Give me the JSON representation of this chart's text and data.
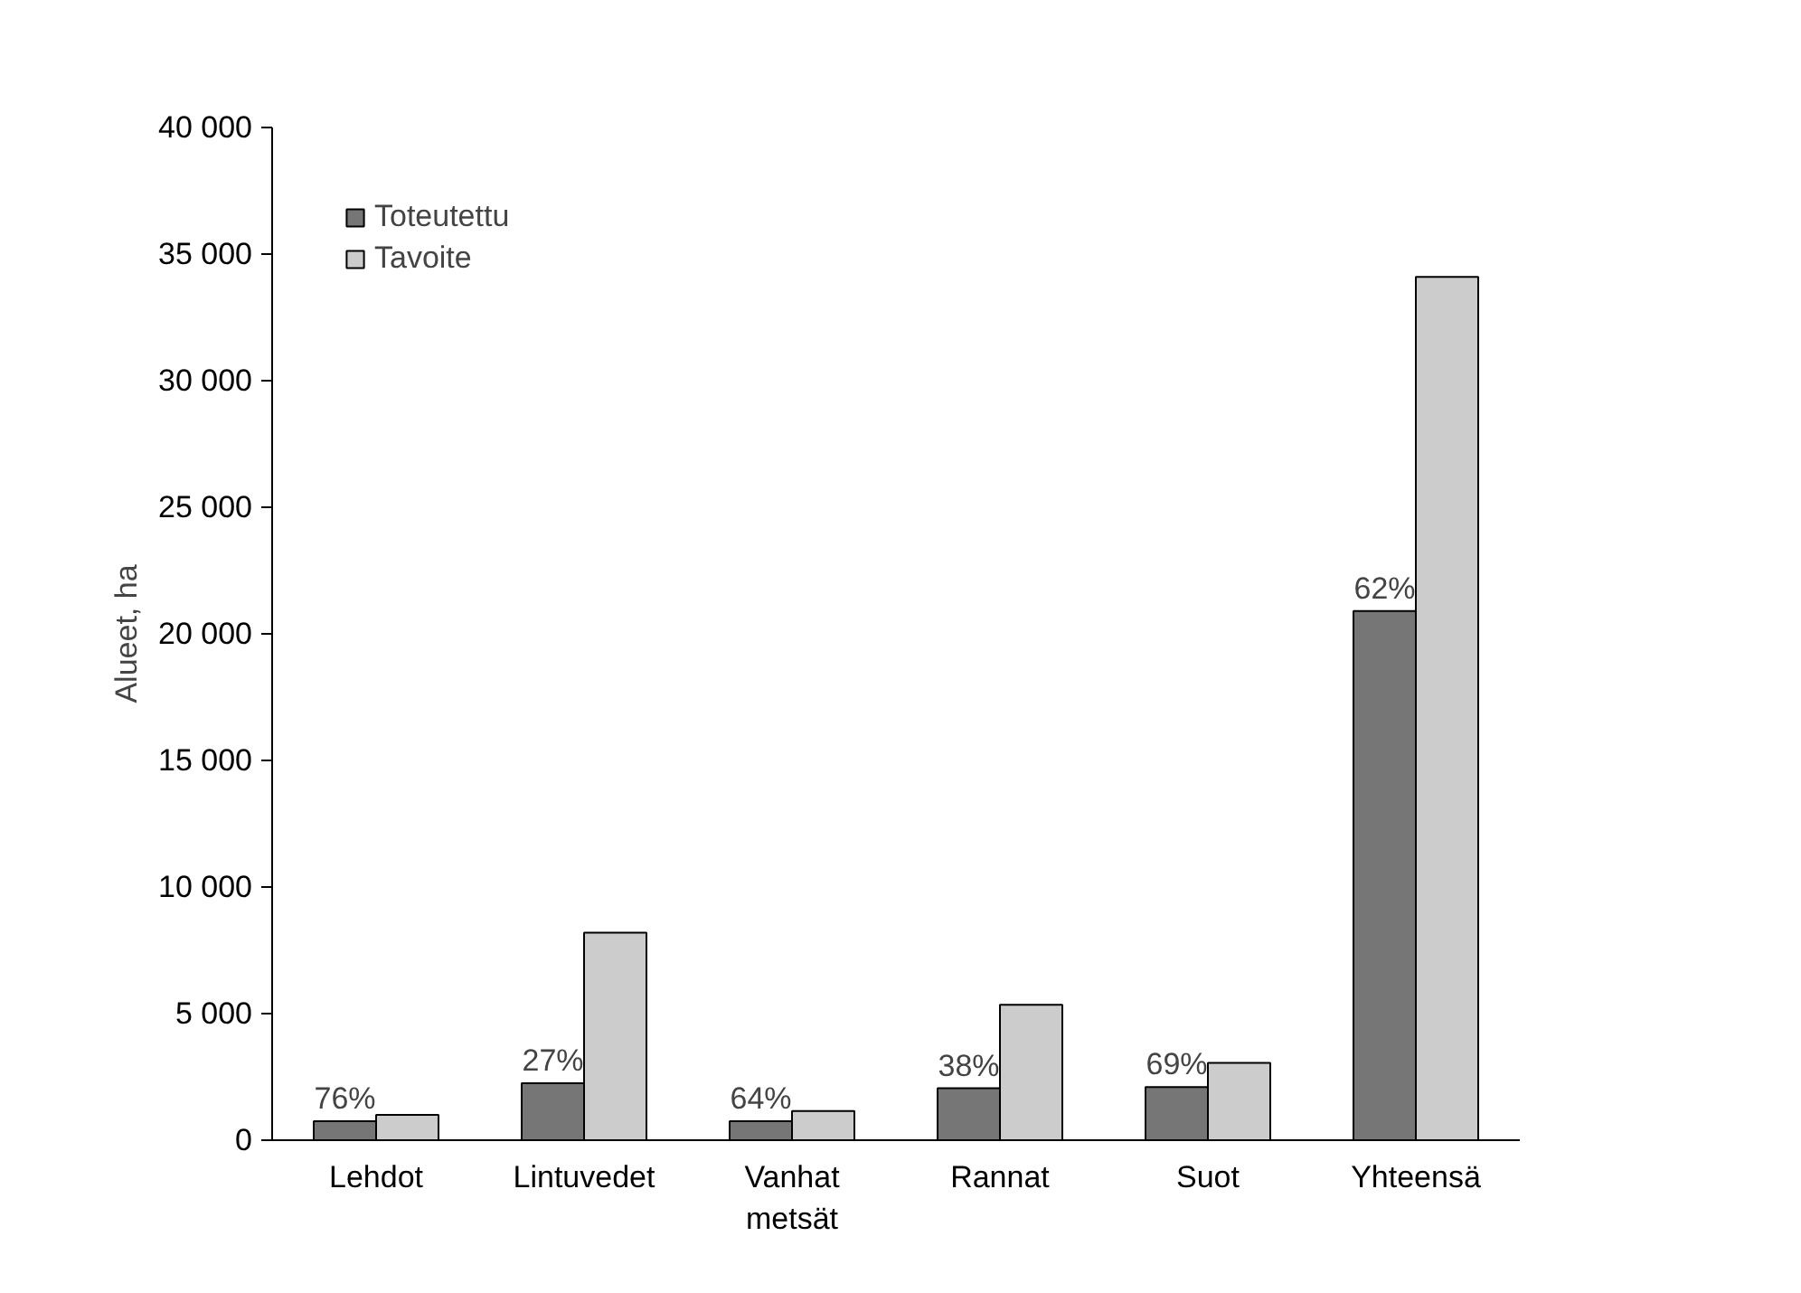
{
  "chart_data": {
    "type": "bar",
    "ylabel": "Alueet, ha",
    "categories": [
      "Lehdot",
      "Lintuvedet",
      "Vanhat\nmetsät",
      "Rannat",
      "Suot",
      "Yhteensä"
    ],
    "series": [
      {
        "name": "Toteutettu",
        "color": "#767676",
        "values": [
          750,
          2250,
          750,
          2050,
          2100,
          20900
        ]
      },
      {
        "name": "Tavoite",
        "color": "#cccccc",
        "values": [
          1000,
          8200,
          1150,
          5350,
          3050,
          34100
        ]
      }
    ],
    "ylim": [
      0,
      40000
    ],
    "yticks": [
      {
        "value": 0,
        "label": "0"
      },
      {
        "value": 5000,
        "label": "5 000"
      },
      {
        "value": 10000,
        "label": "10 000"
      },
      {
        "value": 15000,
        "label": "15 000"
      },
      {
        "value": 20000,
        "label": "20 000"
      },
      {
        "value": 25000,
        "label": "25 000"
      },
      {
        "value": 30000,
        "label": "30 000"
      },
      {
        "value": 35000,
        "label": "35 000"
      },
      {
        "value": 40000,
        "label": "40 000"
      }
    ],
    "annotations": [
      {
        "text": "76%",
        "x": "Lehdot",
        "y": 750
      },
      {
        "text": "27%",
        "x": "Lintuvedet",
        "y": 2250
      },
      {
        "text": "64%",
        "x": "Vanhat\nmetsät",
        "y": 750
      },
      {
        "text": "38%",
        "x": "Rannat",
        "y": 2050
      },
      {
        "text": "69%",
        "x": "Suot",
        "y": 2100
      },
      {
        "text": "62%",
        "x": "Yhteensä",
        "y": 20900
      }
    ],
    "grid": false,
    "legend": "top left"
  }
}
